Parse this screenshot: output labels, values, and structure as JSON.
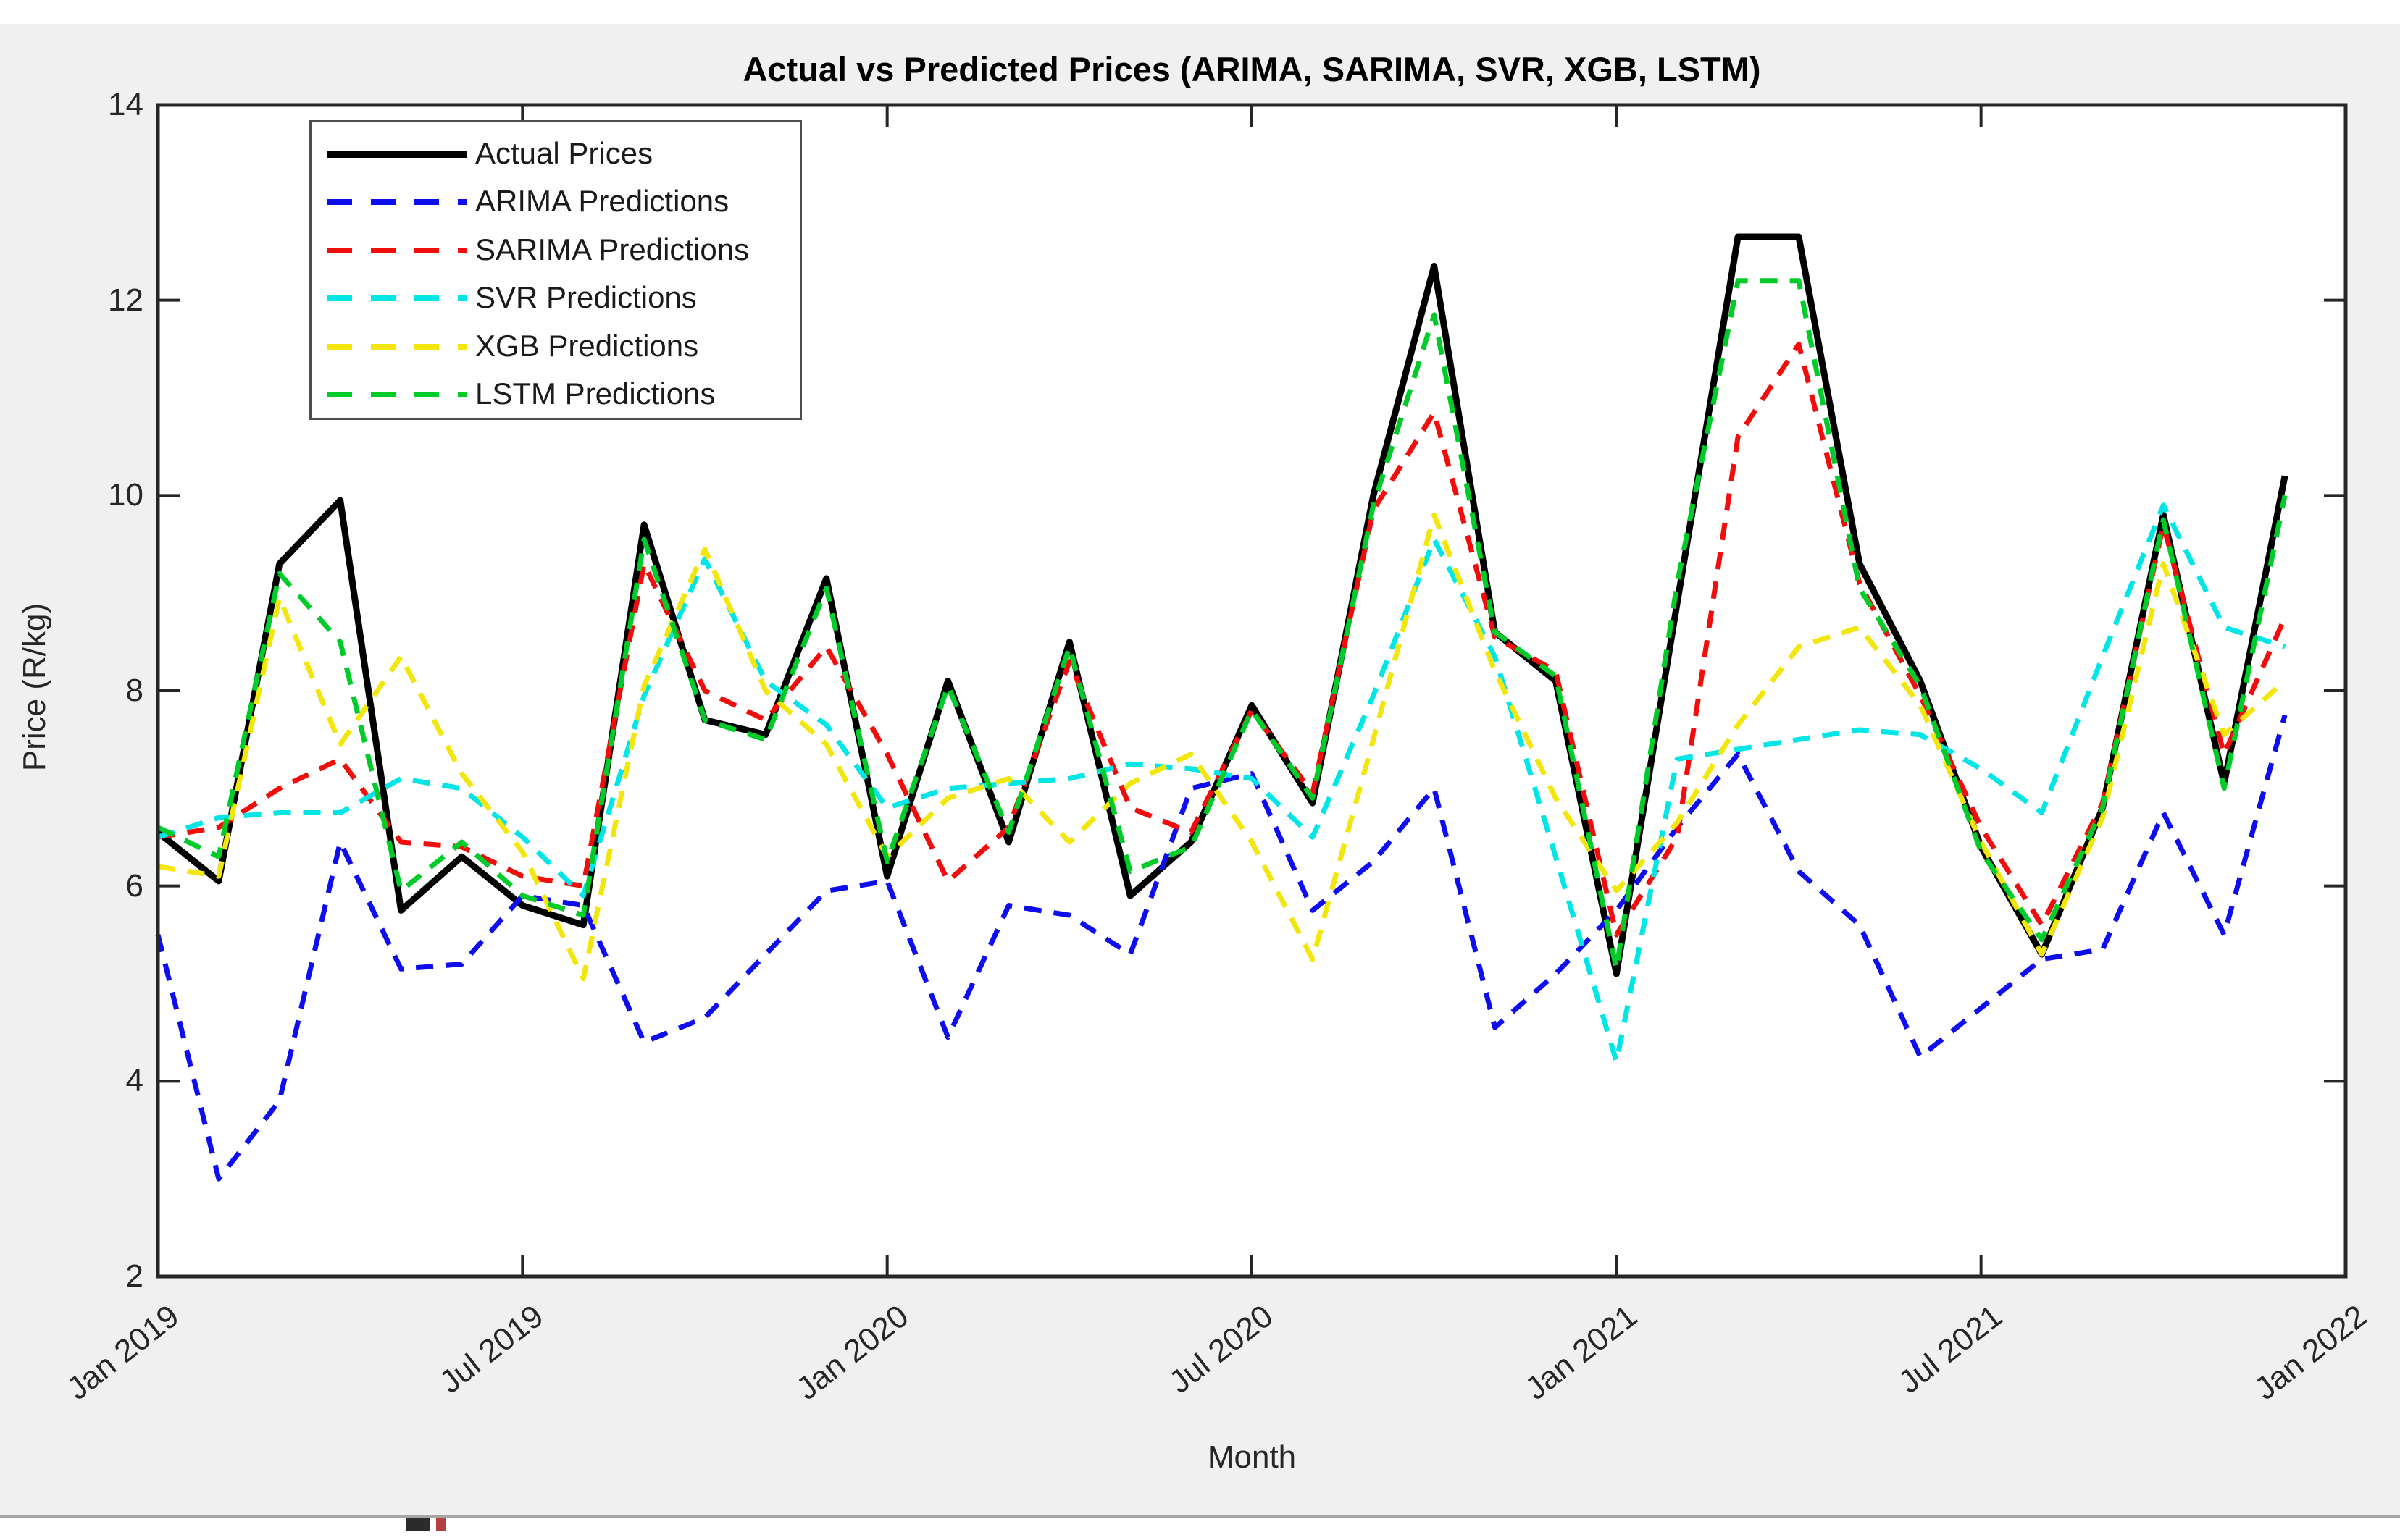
{
  "title": "Actual vs Predicted Prices (ARIMA, SARIMA, SVR, XGB, LSTM)",
  "axes": {
    "xlabel": "Month",
    "ylabel": "Price (R/kg)",
    "ylim": [
      2,
      14
    ],
    "yticks": [
      2,
      4,
      6,
      8,
      10,
      12,
      14
    ],
    "xtick_labels": [
      "Jan 2019",
      "Jul 2019",
      "Jan 2020",
      "Jul 2020",
      "Jan 2021",
      "Jul 2021",
      "Jan 2022"
    ],
    "xtick_month_index": [
      0,
      6,
      12,
      18,
      24,
      30,
      36
    ],
    "grid": "off",
    "box": "on"
  },
  "legend": {
    "position": "top-left-inside",
    "items": [
      {
        "label": "Actual Prices"
      },
      {
        "label": "ARIMA Predictions"
      },
      {
        "label": "SARIMA Predictions"
      },
      {
        "label": "SVR Predictions"
      },
      {
        "label": "XGB Predictions"
      },
      {
        "label": "LSTM Predictions"
      }
    ]
  },
  "chart_data": {
    "type": "line",
    "title": "Actual vs Predicted Prices (ARIMA, SARIMA, SVR, XGB, LSTM)",
    "xlabel": "Month",
    "ylabel": "Price (R/kg)",
    "ylim": [
      2,
      14
    ],
    "x": [
      "Jan 2019",
      "Feb 2019",
      "Mar 2019",
      "Apr 2019",
      "May 2019",
      "Jun 2019",
      "Jul 2019",
      "Aug 2019",
      "Sep 2019",
      "Oct 2019",
      "Nov 2019",
      "Dec 2019",
      "Jan 2020",
      "Feb 2020",
      "Mar 2020",
      "Apr 2020",
      "May 2020",
      "Jun 2020",
      "Jul 2020",
      "Aug 2020",
      "Sep 2020",
      "Oct 2020",
      "Nov 2020",
      "Dec 2020",
      "Jan 2021",
      "Feb 2021",
      "Mar 2021",
      "Apr 2021",
      "May 2021",
      "Jun 2021",
      "Jul 2021",
      "Aug 2021",
      "Sep 2021",
      "Oct 2021",
      "Nov 2021",
      "Dec 2021"
    ],
    "series": [
      {
        "name": "Actual Prices",
        "color": "#000000",
        "style": "solid",
        "width": 9,
        "values": [
          6.55,
          6.05,
          9.3,
          9.95,
          5.75,
          6.3,
          5.8,
          5.6,
          9.7,
          7.7,
          7.55,
          9.15,
          6.1,
          8.1,
          6.45,
          8.5,
          5.9,
          6.45,
          7.85,
          6.85,
          10.0,
          12.35,
          8.6,
          8.1,
          5.1,
          8.9,
          12.65,
          12.65,
          9.3,
          8.1,
          6.4,
          5.3,
          6.8,
          9.8,
          7.05,
          10.2
        ]
      },
      {
        "name": "ARIMA Predictions",
        "color": "#0d0dee",
        "style": "dashed",
        "width": 7,
        "values": [
          5.5,
          3.0,
          3.8,
          6.45,
          5.15,
          5.2,
          5.9,
          5.8,
          4.4,
          4.65,
          5.3,
          5.95,
          6.05,
          4.45,
          5.8,
          5.7,
          5.3,
          7.0,
          7.15,
          5.75,
          6.25,
          7.0,
          4.55,
          5.1,
          5.75,
          6.6,
          7.35,
          6.15,
          5.6,
          4.25,
          4.75,
          5.25,
          5.35,
          6.75,
          5.5,
          7.75
        ]
      },
      {
        "name": "SARIMA Predictions",
        "color": "#f20d0d",
        "style": "dashed",
        "width": 7,
        "values": [
          6.5,
          6.6,
          7.0,
          7.3,
          6.45,
          6.4,
          6.1,
          6.0,
          9.3,
          8.0,
          7.7,
          8.45,
          7.35,
          6.05,
          6.6,
          8.3,
          6.8,
          6.55,
          7.8,
          6.95,
          9.85,
          10.85,
          8.55,
          8.2,
          5.5,
          6.5,
          10.6,
          11.55,
          9.1,
          7.95,
          6.6,
          5.6,
          6.85,
          9.7,
          7.35,
          8.75
        ]
      },
      {
        "name": "SVR Predictions",
        "color": "#00e6e6",
        "style": "dashed",
        "width": 7,
        "values": [
          6.5,
          6.7,
          6.75,
          6.75,
          7.1,
          7.0,
          6.5,
          5.9,
          7.95,
          9.35,
          8.1,
          7.65,
          6.8,
          7.0,
          7.05,
          7.1,
          7.25,
          7.2,
          7.1,
          6.5,
          7.95,
          9.55,
          8.35,
          6.3,
          4.2,
          7.3,
          7.4,
          7.5,
          7.6,
          7.55,
          7.2,
          6.75,
          8.35,
          9.9,
          8.65,
          8.45
        ]
      },
      {
        "name": "XGB Predictions",
        "color": "#f2e60d",
        "style": "dashed",
        "width": 7,
        "values": [
          6.2,
          6.1,
          8.95,
          7.45,
          8.35,
          7.15,
          6.35,
          5.05,
          8.05,
          9.45,
          8.0,
          7.45,
          6.3,
          6.9,
          7.1,
          6.45,
          7.05,
          7.35,
          6.45,
          5.25,
          7.5,
          9.8,
          8.2,
          6.9,
          5.95,
          6.65,
          7.65,
          8.45,
          8.65,
          7.85,
          6.45,
          5.3,
          6.7,
          9.3,
          7.55,
          8.1
        ]
      },
      {
        "name": "LSTM Predictions",
        "color": "#00cc29",
        "style": "dashed",
        "width": 7,
        "values": [
          6.6,
          6.3,
          9.2,
          8.5,
          5.95,
          6.45,
          5.9,
          5.7,
          9.55,
          7.7,
          7.5,
          9.05,
          6.25,
          8.05,
          6.55,
          8.45,
          6.15,
          6.4,
          7.8,
          6.9,
          9.9,
          11.85,
          8.6,
          8.15,
          5.15,
          9.1,
          12.2,
          12.2,
          9.05,
          8.05,
          6.35,
          5.45,
          6.8,
          9.75,
          7.0,
          10.0
        ]
      }
    ]
  },
  "layout_colors": {
    "figure_background": "#f0f0f0",
    "plot_background": "#ffffff",
    "axis_color": "#262626"
  }
}
